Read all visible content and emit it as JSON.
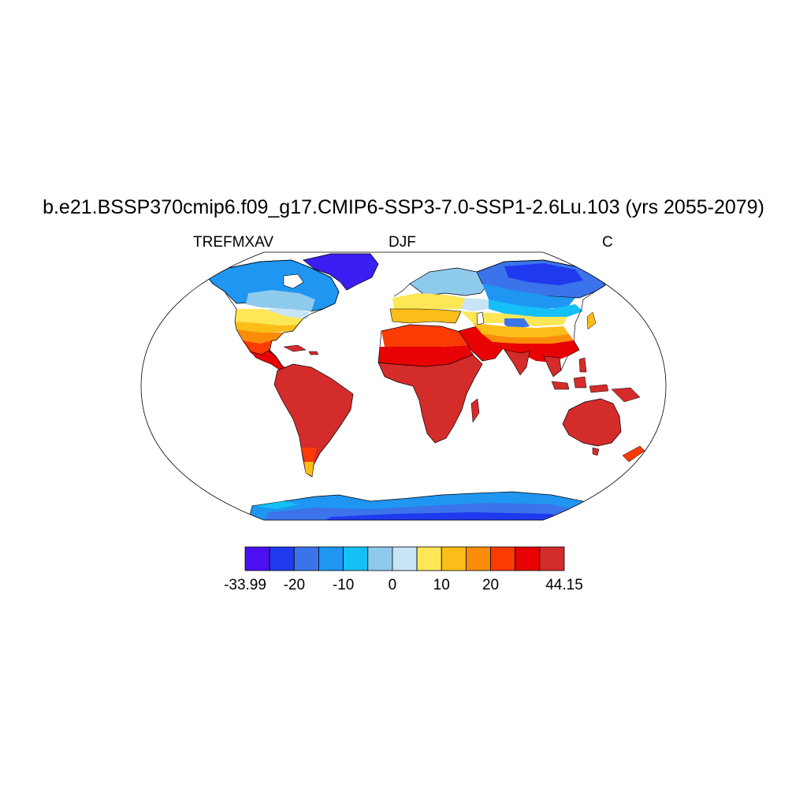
{
  "title": "b.e21.BSSP370cmip6.f09_g17.CMIP6-SSP3-7.0-SSP1-2.6Lu.103 (yrs 2055-2079)",
  "subtitle": {
    "left": "TREFMXAV",
    "center": "DJF",
    "right": "C"
  },
  "colorbar": {
    "colors": [
      "#4b10f2",
      "#1f3aee",
      "#3b74ea",
      "#1e96f2",
      "#14c0f6",
      "#8ecaec",
      "#c8e4f6",
      "#fde757",
      "#fbbd17",
      "#fb8c09",
      "#fa3b04",
      "#e80203",
      "#d42b2b"
    ],
    "labels": [
      "-33.99",
      "-20",
      "-10",
      "0",
      "10",
      "20",
      "44.15"
    ],
    "label_boundaries": [
      0,
      2,
      4,
      6,
      8,
      10,
      13
    ]
  },
  "map": {
    "projection": "Robinson",
    "ocean_color": "#ffffff",
    "coastline_color": "#000000"
  }
}
